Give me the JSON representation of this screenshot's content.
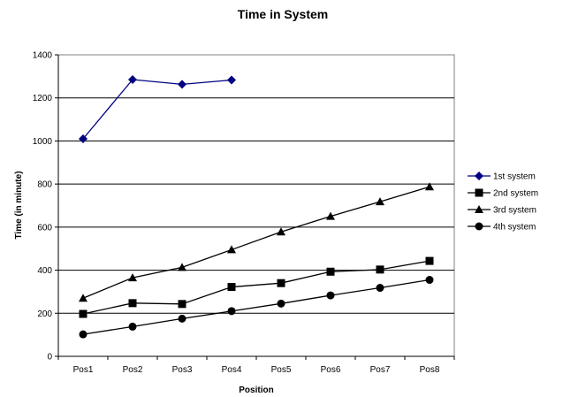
{
  "chart_data": {
    "type": "line",
    "title": "Time in System",
    "xlabel": "Position",
    "ylabel": "Time (in minute)",
    "categories": [
      "Pos1",
      "Pos2",
      "Pos3",
      "Pos4",
      "Pos5",
      "Pos6",
      "Pos7",
      "Pos8"
    ],
    "ylim": [
      0,
      1400
    ],
    "yticks": [
      0,
      200,
      400,
      600,
      800,
      1000,
      1200,
      1400
    ],
    "grid": "horizontal",
    "legend_position": "right",
    "series": [
      {
        "name": "1st system",
        "marker": "diamond",
        "color": "#000080",
        "values": [
          1010,
          1285,
          1263,
          1283,
          null,
          null,
          null,
          null
        ]
      },
      {
        "name": "2nd system",
        "marker": "square",
        "color": "#000000",
        "values": [
          197,
          247,
          243,
          322,
          340,
          393,
          403,
          443
        ]
      },
      {
        "name": "3rd system",
        "marker": "triangle",
        "color": "#000000",
        "values": [
          270,
          365,
          413,
          495,
          578,
          650,
          718,
          787
        ]
      },
      {
        "name": "4th system",
        "marker": "circle",
        "color": "#000000",
        "values": [
          102,
          138,
          175,
          210,
          245,
          283,
          318,
          355
        ]
      }
    ]
  }
}
